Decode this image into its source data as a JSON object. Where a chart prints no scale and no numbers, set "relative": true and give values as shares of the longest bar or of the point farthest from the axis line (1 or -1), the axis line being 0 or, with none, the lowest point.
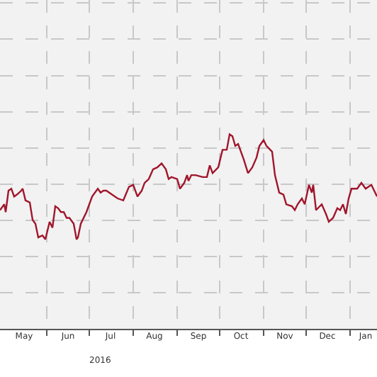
{
  "chart_data": {
    "type": "line",
    "relative": true,
    "grid": true,
    "marker": "none",
    "line_style": "solid",
    "annotations": [
      "2016"
    ],
    "xlim": [
      "2016-04-29",
      "2017-01-20"
    ],
    "xticks": [
      {
        "value": "2016-05-16",
        "label": "May"
      },
      {
        "value": "2016-06-01",
        "label": null
      },
      {
        "value": "2016-06-16",
        "label": "Jun"
      },
      {
        "value": "2016-07-01",
        "label": null
      },
      {
        "value": "2016-07-16",
        "label": "Jul"
      },
      {
        "value": "2016-08-01",
        "label": null
      },
      {
        "value": "2016-08-16",
        "label": "Aug"
      },
      {
        "value": "2016-09-01",
        "label": null
      },
      {
        "value": "2016-09-16",
        "label": "Sep"
      },
      {
        "value": "2016-10-01",
        "label": null
      },
      {
        "value": "2016-10-16",
        "label": "Oct"
      },
      {
        "value": "2016-11-01",
        "label": null
      },
      {
        "value": "2016-11-16",
        "label": "Nov"
      },
      {
        "value": "2016-12-01",
        "label": null
      },
      {
        "value": "2016-12-16",
        "label": "Dec"
      },
      {
        "value": "2017-01-01",
        "label": null
      },
      {
        "value": "2017-01-12",
        "label": "Jan"
      }
    ],
    "series": [
      {
        "color": "#a0162c",
        "x": [
          "2016-04-29",
          "2016-05-02",
          "2016-05-03",
          "2016-05-05",
          "2016-05-07",
          "2016-05-09",
          "2016-05-11",
          "2016-05-14",
          "2016-05-15",
          "2016-05-17",
          "2016-05-20",
          "2016-05-22",
          "2016-05-24",
          "2016-05-26",
          "2016-05-29",
          "2016-05-31",
          "2016-06-03",
          "2016-06-05",
          "2016-06-07",
          "2016-06-09",
          "2016-06-11",
          "2016-06-13",
          "2016-06-15",
          "2016-06-17",
          "2016-06-20",
          "2016-06-22",
          "2016-06-23",
          "2016-06-25",
          "2016-06-29",
          "2016-07-03",
          "2016-07-07",
          "2016-07-09",
          "2016-07-11",
          "2016-07-13",
          "2016-07-17",
          "2016-07-21",
          "2016-07-25",
          "2016-07-29",
          "2016-08-01",
          "2016-08-04",
          "2016-08-07",
          "2016-08-09",
          "2016-08-12",
          "2016-08-15",
          "2016-08-18",
          "2016-08-21",
          "2016-08-24",
          "2016-08-26",
          "2016-08-28",
          "2016-09-01",
          "2016-09-03",
          "2016-09-06",
          "2016-09-08",
          "2016-09-09",
          "2016-09-11",
          "2016-09-14",
          "2016-09-19",
          "2016-09-22",
          "2016-09-24",
          "2016-09-26",
          "2016-09-30",
          "2016-10-03",
          "2016-10-06",
          "2016-10-08",
          "2016-10-10",
          "2016-10-12",
          "2016-10-14",
          "2016-10-16",
          "2016-10-18",
          "2016-10-21",
          "2016-10-24",
          "2016-10-27",
          "2016-10-29",
          "2016-11-01",
          "2016-11-03",
          "2016-11-07",
          "2016-11-09",
          "2016-11-12",
          "2016-11-15",
          "2016-11-17",
          "2016-11-21",
          "2016-11-23",
          "2016-11-25",
          "2016-11-28",
          "2016-11-30",
          "2016-12-03",
          "2016-12-05",
          "2016-12-06",
          "2016-12-08",
          "2016-12-12",
          "2016-12-15",
          "2016-12-17",
          "2016-12-20",
          "2016-12-23",
          "2016-12-25",
          "2016-12-27",
          "2016-12-29",
          "2016-12-31",
          "2017-01-02",
          "2017-01-06",
          "2017-01-09",
          "2017-01-12",
          "2017-01-16",
          "2017-01-20"
        ],
        "values": [
          0.61,
          0.64,
          0.6,
          0.71,
          0.72,
          0.68,
          0.69,
          0.71,
          0.72,
          0.66,
          0.65,
          0.56,
          0.54,
          0.47,
          0.48,
          0.46,
          0.55,
          0.52,
          0.63,
          0.62,
          0.6,
          0.6,
          0.57,
          0.57,
          0.54,
          0.46,
          0.47,
          0.54,
          0.6,
          0.68,
          0.72,
          0.7,
          0.71,
          0.71,
          0.69,
          0.67,
          0.66,
          0.73,
          0.74,
          0.68,
          0.71,
          0.75,
          0.77,
          0.82,
          0.83,
          0.85,
          0.82,
          0.77,
          0.78,
          0.77,
          0.72,
          0.75,
          0.79,
          0.76,
          0.79,
          0.79,
          0.78,
          0.78,
          0.84,
          0.8,
          0.83,
          0.92,
          0.92,
          1.0,
          0.99,
          0.94,
          0.95,
          0.91,
          0.87,
          0.8,
          0.83,
          0.88,
          0.94,
          0.97,
          0.94,
          0.91,
          0.79,
          0.7,
          0.69,
          0.64,
          0.63,
          0.61,
          0.64,
          0.67,
          0.64,
          0.74,
          0.7,
          0.74,
          0.61,
          0.64,
          0.59,
          0.55,
          0.57,
          0.62,
          0.61,
          0.64,
          0.59,
          0.67,
          0.72,
          0.72,
          0.75,
          0.72,
          0.74,
          0.68
        ]
      }
    ]
  }
}
